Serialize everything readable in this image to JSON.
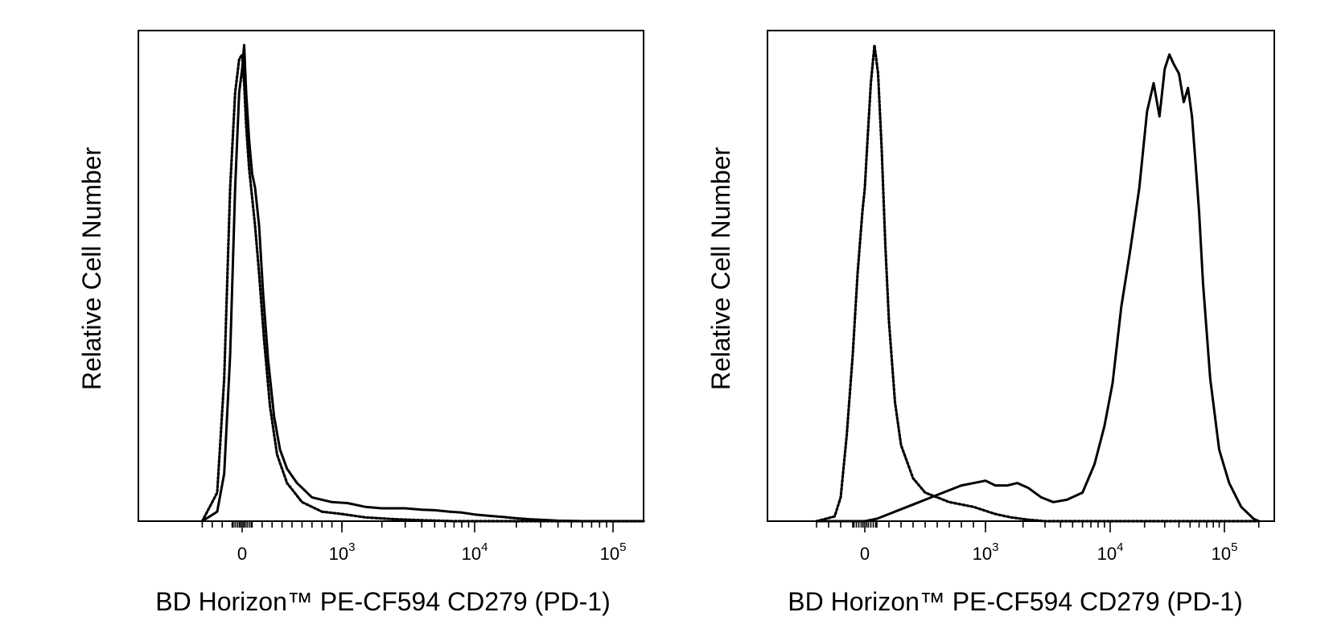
{
  "chart_data": [
    {
      "type": "line",
      "title": "",
      "xlabel": "BD Horizon™ PE-CF594 CD279 (PD-1)",
      "ylabel": "Relative Cell Number",
      "x_scale": "biexponential",
      "xlim": [
        -400,
        200000
      ],
      "ylim": [
        0,
        100
      ],
      "grid": false,
      "x_ticks": [
        {
          "value": 0,
          "base": "0",
          "exp": ""
        },
        {
          "value": 1000,
          "base": "10",
          "exp": "3"
        },
        {
          "value": 10000,
          "base": "10",
          "exp": "4"
        },
        {
          "value": 100000,
          "base": "10",
          "exp": "5"
        }
      ],
      "series": [
        {
          "style": "solid",
          "x": [
            -400,
            -250,
            -180,
            -120,
            -70,
            -30,
            0,
            20,
            40,
            70,
            100,
            130,
            170,
            210,
            260,
            320,
            380,
            450,
            550,
            700,
            900,
            1100,
            1500,
            2000,
            3000,
            4000,
            5000,
            6500,
            8000,
            10000,
            13000,
            16000,
            20000,
            25000,
            30000,
            40000,
            60000,
            100000,
            200000
          ],
          "y": [
            0,
            2,
            10,
            35,
            70,
            90,
            95,
            100,
            90,
            80,
            73,
            70,
            62,
            48,
            34,
            22,
            15,
            11,
            8,
            5,
            4,
            3.8,
            3,
            2.7,
            2.7,
            2.4,
            2.3,
            2,
            1.8,
            1.4,
            1.1,
            0.9,
            0.6,
            0.4,
            0.3,
            0.1,
            0,
            0,
            0
          ]
        },
        {
          "style": "dotted",
          "x": [
            -400,
            -250,
            -180,
            -120,
            -70,
            -30,
            0,
            20,
            40,
            70,
            100,
            130,
            170,
            220,
            280,
            350,
            450,
            600,
            800,
            1000,
            1500,
            2500,
            4000,
            7000,
            200000
          ],
          "y": [
            0,
            6,
            30,
            70,
            90,
            97,
            98,
            92,
            83,
            74,
            68,
            62,
            52,
            38,
            24,
            14,
            8,
            4,
            2,
            1.5,
            0.8,
            0.4,
            0.2,
            0,
            0
          ]
        }
      ]
    },
    {
      "type": "line",
      "title": "",
      "xlabel": "BD Horizon™ PE-CF594 CD279 (PD-1)",
      "ylabel": "Relative Cell Number",
      "x_scale": "biexponential",
      "xlim": [
        -400,
        200000
      ],
      "ylim": [
        0,
        100
      ],
      "grid": false,
      "x_ticks": [
        {
          "value": 0,
          "base": "0",
          "exp": ""
        },
        {
          "value": 1000,
          "base": "10",
          "exp": "3"
        },
        {
          "value": 10000,
          "base": "10",
          "exp": "4"
        },
        {
          "value": 100000,
          "base": "10",
          "exp": "5"
        }
      ],
      "series": [
        {
          "style": "solid",
          "x": [
            -400,
            -150,
            0,
            100,
            200,
            300,
            400,
            500,
            600,
            800,
            1000,
            1200,
            1500,
            1800,
            2200,
            2800,
            3500,
            4500,
            6000,
            7500,
            9000,
            10500,
            12500,
            15000,
            18000,
            21000,
            24000,
            27000,
            30000,
            33000,
            36000,
            40000,
            44000,
            48000,
            52000,
            56000,
            60000,
            65000,
            75000,
            90000,
            110000,
            140000,
            180000,
            200000
          ],
          "y": [
            0,
            0,
            0,
            0.5,
            1.5,
            2.5,
            3.5,
            4.5,
            5.5,
            7.5,
            8.5,
            7.5,
            7.5,
            8,
            7,
            5,
            4,
            4.5,
            6,
            12,
            20,
            29,
            45,
            57,
            70,
            86,
            92,
            85,
            95,
            98,
            96,
            94,
            88,
            91,
            85,
            75,
            65,
            50,
            30,
            15,
            8,
            3,
            0.5,
            0
          ]
        },
        {
          "style": "dotted",
          "x": [
            -400,
            -250,
            -200,
            -150,
            -100,
            -60,
            -20,
            0,
            20,
            50,
            80,
            110,
            140,
            170,
            200,
            250,
            300,
            400,
            500,
            700,
            900,
            1200,
            1600,
            2200,
            3000,
            200000
          ],
          "y": [
            0,
            1,
            5,
            18,
            35,
            52,
            65,
            70,
            79,
            92,
            100,
            94,
            78,
            58,
            42,
            25,
            16,
            9,
            6,
            4,
            3,
            1.5,
            0.8,
            0.3,
            0,
            0
          ]
        }
      ]
    }
  ]
}
